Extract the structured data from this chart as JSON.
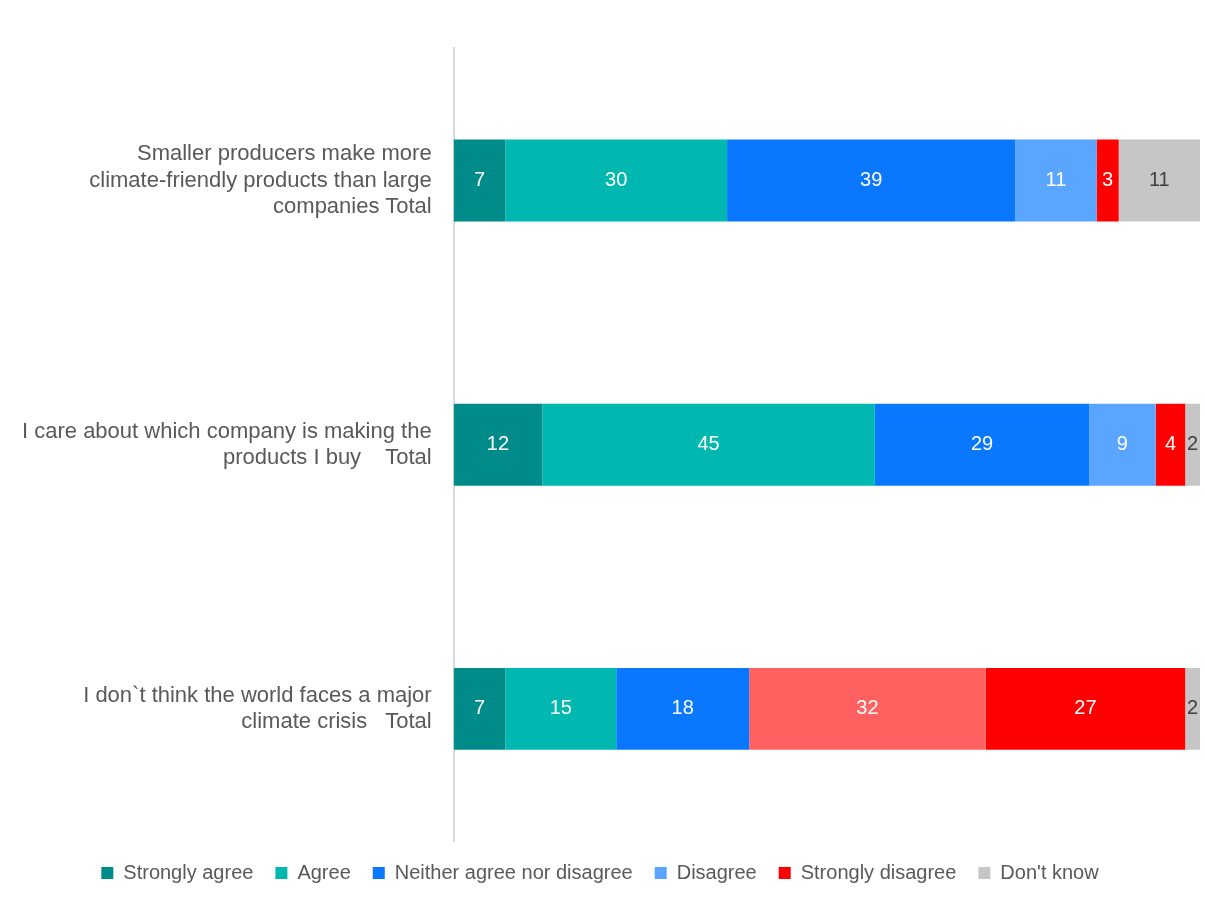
{
  "chart_data": {
    "type": "bar",
    "orientation": "horizontal",
    "stacked": true,
    "data_labels": true,
    "legend": "bottom",
    "grid": false,
    "tick_labels": "y",
    "xlim": [
      0,
      101
    ],
    "categories": [
      "Smaller producers make more climate-friendly products than large companies Total",
      "I care about which company is making the products I buy    Total",
      "I don`t think the world faces a major climate crisis   Total"
    ],
    "series": [
      {
        "name": "Strongly agree",
        "color": "#008b8b",
        "values": [
          7,
          12,
          7
        ]
      },
      {
        "name": "Agree",
        "color": "#00b8b0",
        "values": [
          30,
          45,
          15
        ]
      },
      {
        "name": "Neither agree nor disagree",
        "color": "#0a77ff",
        "values": [
          39,
          29,
          18
        ]
      },
      {
        "name": "Disagree",
        "color": "#5aa5ff",
        "colors": [
          "#5aa5ff",
          "#5aa5ff",
          "#ff6060"
        ],
        "values": [
          11,
          9,
          32
        ]
      },
      {
        "name": "Strongly disagree",
        "color": "#ff0000",
        "values": [
          3,
          4,
          27
        ]
      },
      {
        "name": "Don't know",
        "color": "#c6c6c6",
        "values": [
          11,
          2,
          2
        ]
      }
    ]
  }
}
